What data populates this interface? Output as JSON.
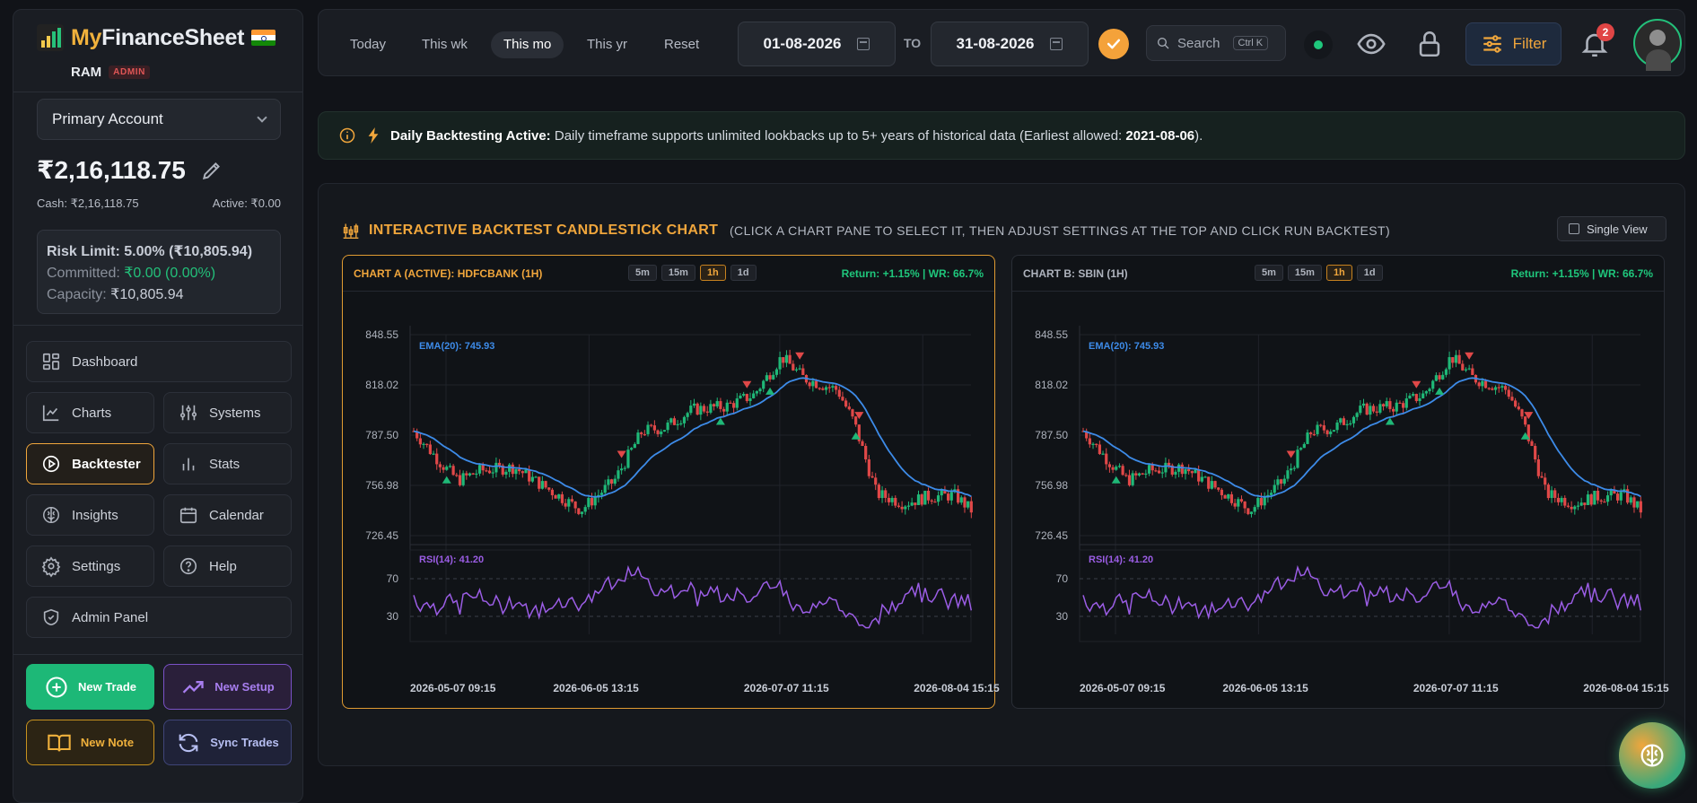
{
  "brand": {
    "name_part1": "My",
    "name_part2": "FinanceSheet"
  },
  "user": {
    "name": "RAM",
    "role": "ADMIN"
  },
  "account": {
    "selected": "Primary Account",
    "balance": "₹2,16,118.75",
    "cash": "Cash: ₹2,16,118.75",
    "active": "Active: ₹0.00"
  },
  "risk": {
    "limit_label": "Risk Limit:",
    "limit_value": "5.00% (₹10,805.94)",
    "committed_label": "Committed:",
    "committed_value": "₹0.00 (0.00%)",
    "capacity_label": "Capacity:",
    "capacity_value": "₹10,805.94"
  },
  "nav": {
    "dashboard": "Dashboard",
    "charts": "Charts",
    "systems": "Systems",
    "backtester": "Backtester",
    "stats": "Stats",
    "insights": "Insights",
    "calendar": "Calendar",
    "settings": "Settings",
    "help": "Help",
    "admin": "Admin Panel"
  },
  "actions": {
    "new_trade": "New Trade",
    "new_setup": "New Setup",
    "new_note": "New Note",
    "sync_trades": "Sync Trades"
  },
  "topbar": {
    "quick_ranges": [
      "Today",
      "This wk",
      "This mo",
      "This yr",
      "Reset"
    ],
    "active_range": "This mo",
    "date_from": "01-08-2026",
    "to_label": "TO",
    "date_to": "31-08-2026",
    "search_label": "Search",
    "search_shortcut": "Ctrl K",
    "filter_label": "Filter",
    "notification_count": "2",
    "status_color": "#1fc77c"
  },
  "banner": {
    "title": "Daily Backtesting Active:",
    "text": " Daily timeframe supports unlimited lookbacks up to 5+ years of historical data (Earliest allowed: ",
    "earliest": "2021-08-06",
    "end": ")."
  },
  "panel": {
    "title": "INTERACTIVE BACKTEST CANDLESTICK CHART",
    "subtitle": "(CLICK A CHART PANE TO SELECT IT, THEN ADJUST SETTINGS AT THE TOP AND CLICK RUN BACKTEST)",
    "single_view": "Single View"
  },
  "charts": [
    {
      "title": "CHART A (ACTIVE): HDFCBANK (1H)",
      "timeframes": [
        "5m",
        "15m",
        "1h",
        "1d"
      ],
      "active_tf": "1h",
      "ret": "Return: +1.15% | WR: 66.7%",
      "ema_label": "EMA(20): 745.93",
      "rsi_label": "RSI(14): 41.20"
    },
    {
      "title": "CHART B: SBIN (1H)",
      "timeframes": [
        "5m",
        "15m",
        "1h",
        "1d"
      ],
      "active_tf": "1h",
      "ret": "Return: +1.15% | WR: 66.7%",
      "ema_label": "EMA(20): 745.93",
      "rsi_label": "RSI(14): 41.20"
    }
  ],
  "chart_data": {
    "type": "candlestick",
    "y_ticks": [
      "848.55",
      "818.02",
      "787.50",
      "756.98",
      "726.45"
    ],
    "ylim": [
      726.45,
      848.55
    ],
    "rsi_ticks": [
      "70",
      "30"
    ],
    "x_ticks": [
      "2026-05-07 09:15",
      "2026-06-05 13:15",
      "2026-07-07 11:15",
      "2026-08-04 15:15"
    ],
    "colors": {
      "up": "#1fb877",
      "down": "#e04848",
      "ema": "#3d8be8",
      "rsi": "#9b5de5"
    }
  }
}
